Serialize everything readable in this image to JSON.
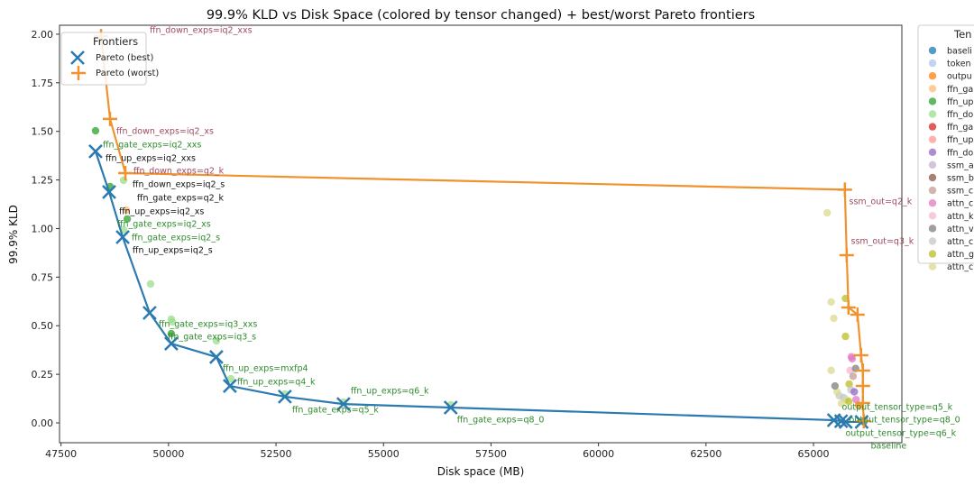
{
  "chart_data": {
    "type": "scatter",
    "title": "99.9% KLD vs Disk Space (colored by tensor changed) + best/worst Pareto frontiers",
    "xlabel": "Disk space (MB)",
    "ylabel": "99.9% KLD",
    "xlim": [
      47465,
      67055
    ],
    "ylim": [
      -0.102,
      2.046
    ],
    "xticks": [
      47500,
      50000,
      52500,
      55000,
      57500,
      60000,
      62500,
      65000
    ],
    "yticks": [
      0.0,
      0.25,
      0.5,
      0.75,
      1.0,
      1.25,
      1.5,
      1.75,
      2.0
    ],
    "xtick_labels": [
      "47500",
      "50000",
      "52500",
      "55000",
      "57500",
      "60000",
      "62500",
      "65000"
    ],
    "ytick_labels": [
      "0.00",
      "0.25",
      "0.50",
      "0.75",
      "1.00",
      "1.25",
      "1.50",
      "1.75",
      "2.00"
    ],
    "grid": false,
    "frontier_legend": {
      "title": "Frontiers",
      "placement": "top-left",
      "entries": [
        {
          "label": "Pareto (best)",
          "color": "#2b7bb0",
          "marker": "x"
        },
        {
          "label": "Pareto (worst)",
          "color": "#f0922e",
          "marker": "+"
        }
      ]
    },
    "tensor_legend": {
      "title": "Ten",
      "placement": "outside-right",
      "entries": [
        {
          "label": "baseli",
          "color": "#1f77b4"
        },
        {
          "label": "token",
          "color": "#aec7e8"
        },
        {
          "label": "outpu",
          "color": "#ff7f0e"
        },
        {
          "label": "ffn_ga",
          "color": "#ffbb78"
        },
        {
          "label": "ffn_up",
          "color": "#2ca02c"
        },
        {
          "label": "ffn_do",
          "color": "#98df8a"
        },
        {
          "label": "ffn_ga",
          "color": "#d62728"
        },
        {
          "label": "ffn_up",
          "color": "#ff9896"
        },
        {
          "label": "ffn_do",
          "color": "#9467bd"
        },
        {
          "label": "ssm_a",
          "color": "#c5b0d5"
        },
        {
          "label": "ssm_b",
          "color": "#8c564b"
        },
        {
          "label": "ssm_c",
          "color": "#c49c94"
        },
        {
          "label": "attn_c",
          "color": "#e377c2"
        },
        {
          "label": "attn_k",
          "color": "#f7b6d2"
        },
        {
          "label": "attn_v",
          "color": "#7f7f7f"
        },
        {
          "label": "attn_c",
          "color": "#c7c7c7"
        },
        {
          "label": "attn_g",
          "color": "#bcbd22"
        },
        {
          "label": "attn_c",
          "color": "#dbdb8d"
        }
      ]
    },
    "series": [
      {
        "name": "Pareto (best)",
        "color": "#2b7bb0",
        "points": [
          [
            48303,
            1.397
          ],
          [
            48619,
            1.188
          ],
          [
            48934,
            0.956
          ],
          [
            49561,
            0.566
          ],
          [
            50064,
            0.408
          ],
          [
            51112,
            0.339
          ],
          [
            51427,
            0.19
          ],
          [
            52706,
            0.135
          ],
          [
            54069,
            0.097
          ],
          [
            56563,
            0.079
          ],
          [
            65475,
            0.014
          ],
          [
            65643,
            0.009
          ],
          [
            65750,
            0.005
          ],
          [
            66120,
            0.005
          ]
        ]
      },
      {
        "name": "Pareto (worst)",
        "color": "#f0922e",
        "points": [
          [
            48431,
            1.99
          ],
          [
            48640,
            1.564
          ],
          [
            48997,
            1.285
          ],
          [
            65730,
            1.2
          ],
          [
            65772,
            0.863
          ],
          [
            65814,
            0.594
          ],
          [
            66024,
            0.557
          ],
          [
            66107,
            0.348
          ],
          [
            66149,
            0.269
          ],
          [
            66149,
            0.19
          ],
          [
            66149,
            0.102
          ],
          [
            66170,
            0.009
          ]
        ]
      }
    ],
    "scatter_points": [
      [
        48303,
        1.503,
        4
      ],
      [
        48640,
        1.216,
        4
      ],
      [
        48955,
        1.248,
        5
      ],
      [
        49018,
        1.095,
        3
      ],
      [
        49039,
        1.049,
        4
      ],
      [
        48955,
        0.993,
        5
      ],
      [
        49582,
        0.715,
        5
      ],
      [
        50064,
        0.534,
        5
      ],
      [
        50085,
        0.52,
        5
      ],
      [
        50064,
        0.459,
        4
      ],
      [
        51112,
        0.422,
        5
      ],
      [
        51447,
        0.227,
        5
      ],
      [
        52706,
        0.149,
        5
      ],
      [
        54069,
        0.107,
        5
      ],
      [
        56563,
        0.093,
        5
      ],
      [
        65318,
        1.081,
        17
      ],
      [
        65411,
        0.622,
        17
      ],
      [
        65473,
        0.538,
        17
      ],
      [
        65744,
        0.64,
        16
      ],
      [
        65744,
        0.445,
        16
      ],
      [
        65411,
        0.27,
        17
      ],
      [
        65880,
        0.34,
        12
      ],
      [
        65900,
        0.33,
        12
      ],
      [
        65850,
        0.27,
        13
      ],
      [
        65920,
        0.24,
        11
      ],
      [
        65980,
        0.28,
        14
      ],
      [
        65830,
        0.2,
        16
      ],
      [
        65870,
        0.17,
        15
      ],
      [
        65950,
        0.16,
        8
      ],
      [
        65700,
        0.13,
        1
      ],
      [
        65760,
        0.12,
        17
      ],
      [
        65820,
        0.11,
        16
      ],
      [
        65990,
        0.12,
        12
      ],
      [
        65600,
        0.14,
        15
      ],
      [
        65650,
        0.1,
        17
      ],
      [
        66050,
        0.09,
        2
      ],
      [
        65550,
        0.16,
        17
      ],
      [
        65500,
        0.19,
        14
      ],
      [
        66170,
        0.005,
        0
      ]
    ],
    "annotations": [
      {
        "text": "ffn_down_exps=iq2_xxs",
        "x": 48471,
        "y": 2.019,
        "color": "#a04a5e"
      },
      {
        "text": "ffn_down_exps=iq2_xs",
        "x": 48785,
        "y": 1.499,
        "color": "#a04a5e"
      },
      {
        "text": "ffn_gate_exps=iq2_xxs",
        "x": 48471,
        "y": 1.462,
        "color": "#2e8b2e"
      },
      {
        "text": "ffn_up_exps=iq2_xxs",
        "x": 48534,
        "y": 1.425,
        "color": "#111111"
      },
      {
        "text": "ffn_down_exps=q2_k",
        "x": 49183,
        "y": 1.35,
        "color": "#a04a5e"
      },
      {
        "text": "ffn_down_exps=iq2_s",
        "x": 49162,
        "y": 1.327,
        "color": "#111111"
      },
      {
        "text": "ffn_gate_exps=q2_k",
        "x": 49267,
        "y": 1.174,
        "color": "#111111"
      },
      {
        "text": "ffn_up_exps=iq2_xs",
        "x": 48848,
        "y": 1.142,
        "color": "#111111"
      },
      {
        "text": "ffn_gate_exps=iq2_xs",
        "x": 48806,
        "y": 1.123,
        "color": "#2e8b2e"
      },
      {
        "text": "ffn_gate_exps=iq2_s",
        "x": 49141,
        "y": 1.021,
        "color": "#2e8b2e"
      },
      {
        "text": "ffn_up_exps=iq2_s",
        "x": 49162,
        "y": 0.928,
        "color": "#111111"
      },
      {
        "text": "ffn_gate_exps=iq3_xxs",
        "x": 49770,
        "y": 0.506,
        "color": "#2e8b2e"
      },
      {
        "text": "ffn_gate_exps=iq3_s",
        "x": 49980,
        "y": 0.473,
        "color": "#2e8b2e"
      },
      {
        "text": "ffn_up_exps=mxfp4",
        "x": 51259,
        "y": 0.278,
        "color": "#2e8b2e"
      },
      {
        "text": "ffn_up_exps=q4_k",
        "x": 51594,
        "y": 0.26,
        "color": "#2e8b2e"
      },
      {
        "text": "ffn_up_exps=q6_k",
        "x": 54236,
        "y": 0.162,
        "color": "#2e8b2e"
      },
      {
        "text": "ffn_gate_exps=q5_k",
        "x": 52873,
        "y": 0.065,
        "color": "#2e8b2e"
      },
      {
        "text": "ffn_gate_exps=q8_0",
        "x": 56710,
        "y": 0.014,
        "color": "#2e8b2e"
      },
      {
        "text": "ssm_out=q2_k",
        "x": 65912,
        "y": 1.137,
        "color": "#a04a5e"
      },
      {
        "text": "ssm_out=q3_k",
        "x": 65954,
        "y": 0.933,
        "color": "#a04a5e"
      },
      {
        "text": "output_tensor_type=q5_k",
        "x": 65661,
        "y": 0.079,
        "color": "#2e8b2e"
      },
      {
        "text": "output_tensor_type=q8_0",
        "x": 65828,
        "y": 0.065,
        "color": "#2e8b2e"
      },
      {
        "text": "output_tensor_type=q6_k",
        "x": 65744,
        "y": -0.056,
        "color": "#2e8b2e"
      },
      {
        "text": "baseline",
        "x": 66331,
        "y": -0.056,
        "color": "#2e8b2e"
      }
    ]
  }
}
